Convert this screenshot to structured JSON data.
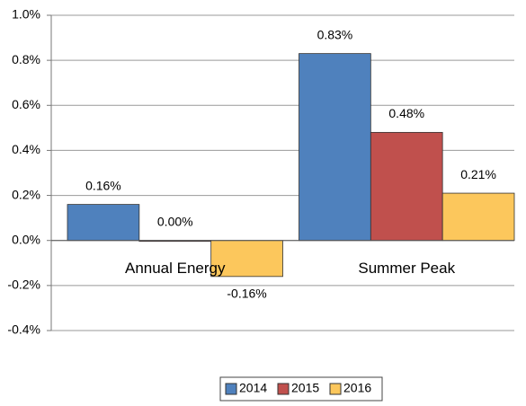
{
  "chart_data": {
    "type": "bar",
    "categories": [
      "Annual Energy",
      "Summer Peak"
    ],
    "series": [
      {
        "name": "2014",
        "color": "#4f81bd",
        "values": [
          0.16,
          0.83
        ],
        "value_labels": [
          "0.16%",
          "0.83%"
        ]
      },
      {
        "name": "2015",
        "color": "#c0504d",
        "values": [
          0.0,
          0.48
        ],
        "value_labels": [
          "0.00%",
          "0.48%"
        ]
      },
      {
        "name": "2016",
        "color": "#fcc75c",
        "values": [
          -0.16,
          0.21
        ],
        "value_labels": [
          "-0.16%",
          "0.21%"
        ]
      }
    ],
    "ylim": [
      -0.4,
      1.0
    ],
    "yticks": [
      {
        "value": -0.4,
        "label": "-0.4%"
      },
      {
        "value": -0.2,
        "label": "-0.2%"
      },
      {
        "value": 0,
        "label": "0.0%"
      },
      {
        "value": 0.2,
        "label": "0.2%"
      },
      {
        "value": 0.4,
        "label": "0.4%"
      },
      {
        "value": 0.6,
        "label": "0.6%"
      },
      {
        "value": 0.8,
        "label": "0.8%"
      },
      {
        "value": 1.0,
        "label": "1.0%"
      }
    ],
    "grid": true,
    "legend": "bottom"
  }
}
